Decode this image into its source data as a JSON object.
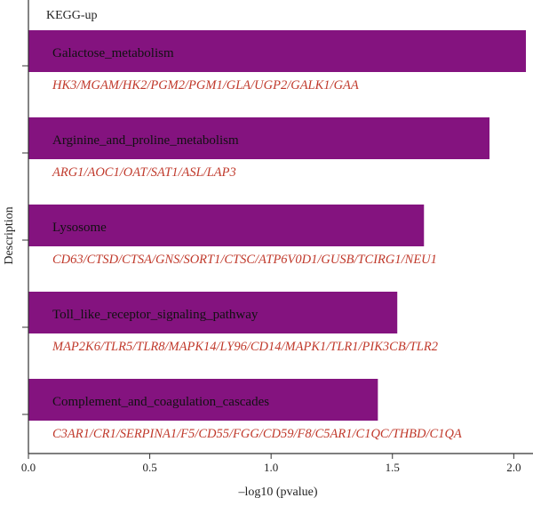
{
  "chart_data": {
    "type": "bar",
    "orientation": "horizontal",
    "title": "KEGG-up",
    "xlabel": "–log10 (pvalue)",
    "ylabel": "Description",
    "xlim": [
      0,
      2.05
    ],
    "xticks": [
      "0.0",
      "0.5",
      "1.0",
      "1.5",
      "2.0"
    ],
    "grid": false,
    "colors": {
      "bar": "#84137f",
      "genes": "#c0392b",
      "text": "#111111"
    },
    "categories": [
      "Galactose_metabolism",
      "Arginine_and_proline_metabolism",
      "Lysosome",
      "Toll_like_receptor_signaling_pathway",
      "Complement_and_coagulation_cascades"
    ],
    "values": [
      2.05,
      1.9,
      1.63,
      1.52,
      1.44
    ],
    "genes": [
      "HK3/MGAM/HK2/PGM2/PGM1/GLA/UGP2/GALK1/GAA",
      "ARG1/AOC1/OAT/SAT1/ASL/LAP3",
      "CD63/CTSD/CTSA/GNS/SORT1/CTSC/ATP6V0D1/GUSB/TCIRG1/NEU1",
      "MAP2K6/TLR5/TLR8/MAPK14/LY96/CD14/MAPK1/TLR1/PIK3CB/TLR2",
      "C3AR1/CR1/SERPINA1/F5/CD55/FGG/CD59/F8/C5AR1/C1QC/THBD/C1QA"
    ]
  }
}
